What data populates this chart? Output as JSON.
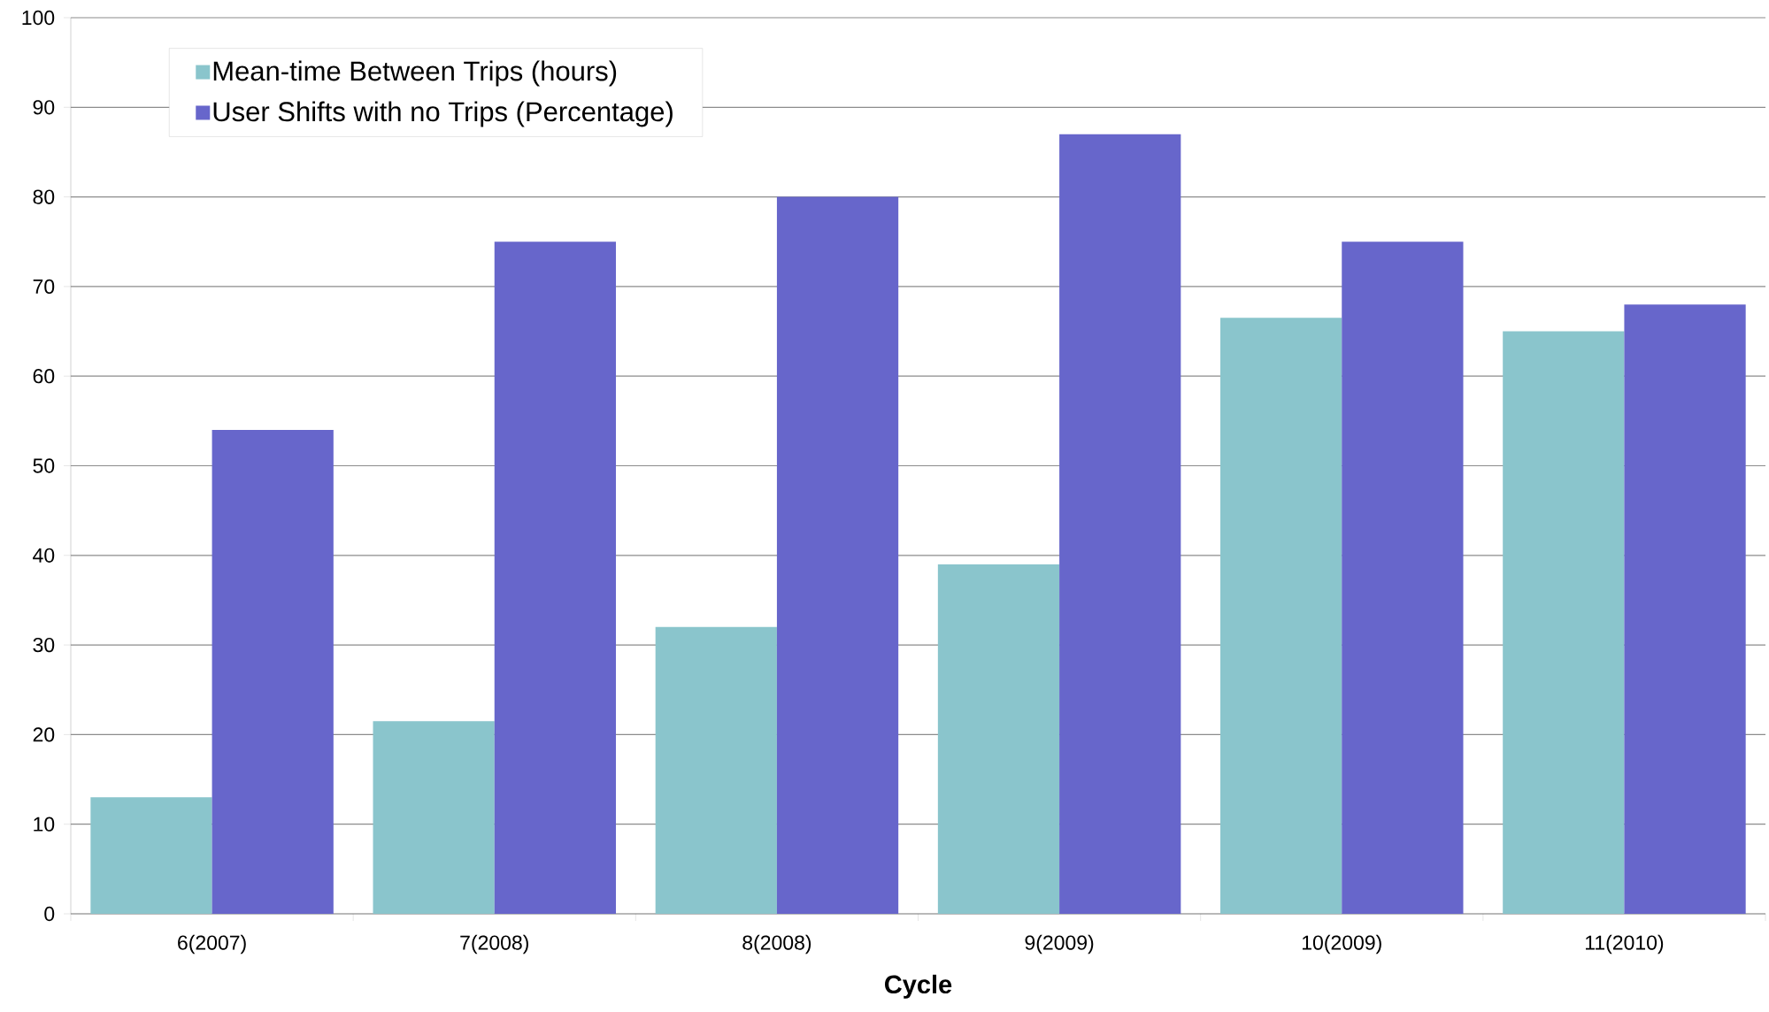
{
  "chart_data": {
    "type": "bar",
    "xlabel": "Cycle",
    "categories": [
      "6(2007)",
      "7(2008)",
      "8(2008)",
      "9(2009)",
      "10(2009)",
      "11(2010)"
    ],
    "series": [
      {
        "name": "Mean-time Between Trips (hours)",
        "color": "#8ac5cc",
        "values": [
          13,
          21.5,
          32,
          39,
          66.5,
          65
        ]
      },
      {
        "name": "User Shifts with no Trips (Percentage)",
        "color": "#6766cb",
        "values": [
          54,
          75,
          80,
          87,
          75,
          68
        ]
      }
    ],
    "ylim": [
      0,
      100
    ],
    "yticks": [
      0,
      10,
      20,
      30,
      40,
      50,
      60,
      70,
      80,
      90,
      100
    ],
    "grid": "y",
    "legend": "top left"
  }
}
